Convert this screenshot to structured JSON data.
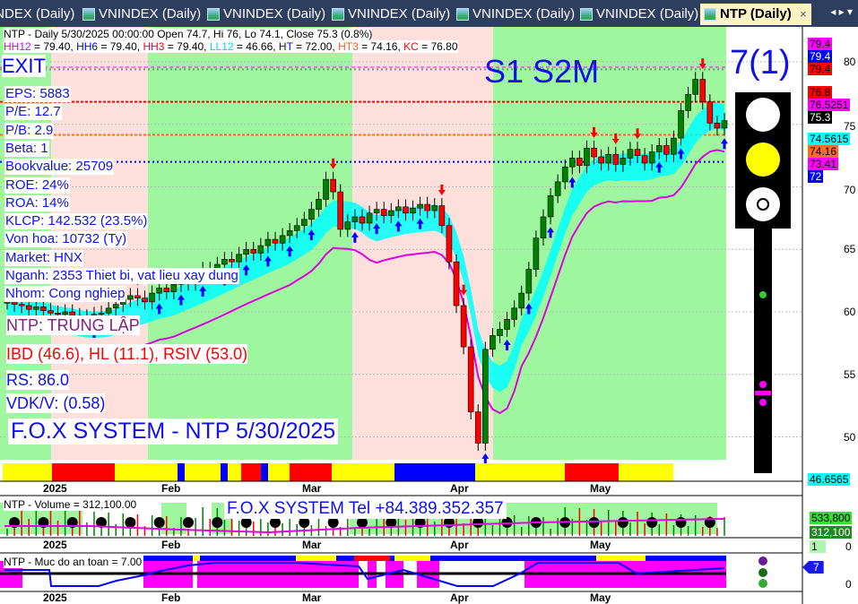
{
  "tabs": [
    {
      "label": "INDEX (Daily)",
      "active": false
    },
    {
      "label": "VNINDEX (Daily)",
      "active": false
    },
    {
      "label": "VNINDEX (Daily)",
      "active": false
    },
    {
      "label": "VNINDEX (Daily)",
      "active": false
    },
    {
      "label": "VNINDEX (Daily)",
      "active": false
    },
    {
      "label": "VNINDEX (Daily)",
      "active": false
    },
    {
      "label": "NTP (Daily)",
      "active": true
    }
  ],
  "tab_close": "×",
  "tab_nav": "◂ ▸ ▾",
  "price_pane": {
    "header": "NTP - Daily 5/30/2025 00:00:00 Open 74.7, Hi 76, Lo 74.1, Close 75.3 (0.8%)",
    "levels": [
      {
        "label": "HH12",
        "value": "= 79.40, ",
        "color": "#e000e0"
      },
      {
        "label": "HH6",
        "value": "= 79.40, ",
        "color": "#0000ff"
      },
      {
        "label": "HH3",
        "value": "= 79.40, ",
        "color": "#ff0000"
      },
      {
        "label": "LL12",
        "value": "= 46.66, ",
        "color": "#00d8e8"
      },
      {
        "label": "HT",
        "value": " = 72.00, ",
        "color": "#0000ff"
      },
      {
        "label": "HT3",
        "value": " = 74.16, ",
        "color": "#ff6020"
      },
      {
        "label": "KC",
        "value": "= 76.80",
        "color": "#ff0000"
      }
    ],
    "signal": "EXIT",
    "fundamentals": [
      "EPS: 5883",
      "P/E: 12.7",
      "P/B: 2.9",
      "Beta: 1",
      "Bookvalue: 25709",
      "ROE: 24%",
      "ROA: 14%",
      "KLCP: 142.532 (23.5%)",
      "Von hoa: 10732 (Ty)",
      "Market: HNX",
      "Nganh: 2353 Thiet bi, vat lieu xay dung",
      "Nhom: Cong nghiep"
    ],
    "status": "NTP: TRUNG LẬP",
    "indicators": "IBD (46.6), HL (11.1), RSIV (53.0)",
    "rs": "RS: 86.0",
    "vdk": "VDK/V:  (0.58)",
    "footer": "F.O.X SYSTEM - NTP 5/30/2025",
    "stage": "S1  S2M",
    "rank": "7(1)",
    "right_labels": [
      {
        "text": "79.4",
        "bg": "#ff00ff",
        "fg": "#000"
      },
      {
        "text": "79.4",
        "bg": "#0000ff",
        "fg": "#fff"
      },
      {
        "text": "79.4",
        "bg": "#ff0000",
        "fg": "#000"
      },
      {
        "text": "76.8",
        "bg": "#ff0000",
        "fg": "#000"
      },
      {
        "text": "76.5251",
        "bg": "#ff00ff",
        "fg": "#000"
      },
      {
        "text": "75.3",
        "bg": "#000000",
        "fg": "#fff"
      },
      {
        "text": "74.5615",
        "bg": "#00ffff",
        "fg": "#000"
      },
      {
        "text": "74.16",
        "bg": "#ff6a2a",
        "fg": "#000"
      },
      {
        "text": "73.41",
        "bg": "#ff00ff",
        "fg": "#000"
      },
      {
        "text": "72",
        "bg": "#0000ff",
        "fg": "#fff"
      },
      {
        "text": "46.6565",
        "bg": "#00ffff",
        "fg": "#000"
      }
    ],
    "y_ticks": [
      "80",
      "75",
      "70",
      "65",
      "60",
      "55",
      "50"
    ],
    "x_ticks": [
      "2025",
      "Feb",
      "Mar",
      "Apr",
      "May"
    ],
    "close_series": [
      60.8,
      60.6,
      60.5,
      60.2,
      60.4,
      60.1,
      59.9,
      59.8,
      60.0,
      59.7,
      59.5,
      59.6,
      59.8,
      59.9,
      60.3,
      60.6,
      61.0,
      61.3,
      61.1,
      60.8,
      61.5,
      61.9,
      61.6,
      62.2,
      62.6,
      62.3,
      62.9,
      63.4,
      63.1,
      63.8,
      64.2,
      64.0,
      64.6,
      65.0,
      64.7,
      65.3,
      65.8,
      65.5,
      66.1,
      66.5,
      66.9,
      67.4,
      68.2,
      69.0,
      70.6,
      69.6,
      66.6,
      67.2,
      67.6,
      67.1,
      67.9,
      68.2,
      67.7,
      68.1,
      68.4,
      67.9,
      68.3,
      68.6,
      68.1,
      68.5,
      66.9,
      64.0,
      60.5,
      57.2,
      52.0,
      49.5,
      57.0,
      58.1,
      58.6,
      59.4,
      60.3,
      61.5,
      63.4,
      65.9,
      67.6,
      69.3,
      70.4,
      71.6,
      72.3,
      71.7,
      73.1,
      72.4,
      71.9,
      72.6,
      71.8,
      72.3,
      73.0,
      72.5,
      71.9,
      72.8,
      73.3,
      72.6,
      73.9,
      76.1,
      77.4,
      78.6,
      76.8,
      75.1,
      74.7,
      75.3
    ]
  },
  "volume_pane": {
    "header": "NTP - Volume = 312,100.00",
    "banner": "F.O.X SYSTEM Tel +84.389.352.357",
    "right_labels": [
      {
        "text": "533,800",
        "bg": "#33dd33",
        "fg": "#000"
      },
      {
        "text": "312,100",
        "bg": "#228822",
        "fg": "#fff"
      }
    ],
    "y_tick": "0",
    "count": "1"
  },
  "safety_pane": {
    "header": "NTP - Muc do an toan = 7.00",
    "right_label": "7",
    "y_tick": "0"
  },
  "colors": {
    "up": "#008000",
    "down": "#ff0000",
    "green_bg": "#9ef79e",
    "pink_bg": "#fde0dc",
    "tab_bg": "#2d3e5e"
  }
}
